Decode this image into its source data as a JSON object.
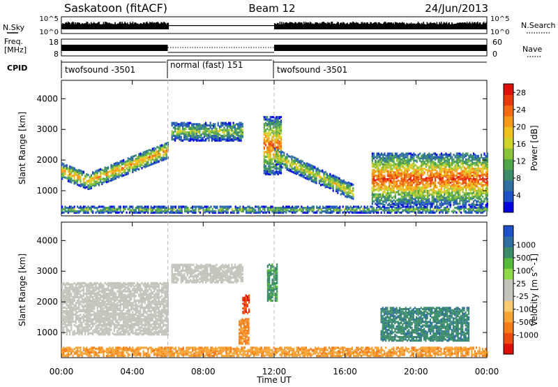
{
  "header": {
    "radar": "Saskatoon (fitACF)",
    "beam": "Beam 12",
    "date": "24/Jun/2013"
  },
  "noise_panel": {
    "left_label": "N.Sky",
    "right_label": "N.Search",
    "left_ticks": [
      "10^5",
      "10^0"
    ],
    "right_ticks": [
      "10^5",
      "10^0"
    ]
  },
  "freq_panel": {
    "left_label": "Freq.",
    "left_unit": "[MHz]",
    "left_ticks": [
      "18",
      "8"
    ],
    "right_label": "Nave",
    "right_ticks": [
      "60",
      "0"
    ]
  },
  "cpid": {
    "label": "CPID",
    "segments": [
      {
        "name": "twofsound -3501",
        "start_h": 0,
        "end_h": 6
      },
      {
        "name": "normal (fast) 151",
        "start_h": 6,
        "end_h": 12
      },
      {
        "name": "twofsound -3501",
        "start_h": 12,
        "end_h": 24
      }
    ]
  },
  "time_axis": {
    "label": "Time UT",
    "ticks": [
      "00:00",
      "04:00",
      "08:00",
      "12:00",
      "16:00",
      "20:00",
      "00:00"
    ],
    "tick_hours": [
      0,
      4,
      8,
      12,
      16,
      20,
      24
    ]
  },
  "chart_data": [
    {
      "type": "heatmap",
      "title": "",
      "quantity": "Power",
      "xlabel": "",
      "ylabel": "Slant Range [km]",
      "yticks": [
        "1000",
        "2000",
        "3000",
        "4000"
      ],
      "ytick_values": [
        1000,
        2000,
        3000,
        4000
      ],
      "ylim": [
        180,
        4600
      ],
      "xlim_hours": [
        0,
        24
      ],
      "colorbar": {
        "label": "Power [dB]",
        "ticks": [
          "4",
          "8",
          "12",
          "16",
          "20",
          "24",
          "28"
        ],
        "tick_values": [
          4,
          8,
          12,
          16,
          20,
          24,
          28
        ],
        "range": [
          0,
          30
        ],
        "colors": [
          "#0000e6",
          "#1e50c8",
          "#2f6fa0",
          "#3b8d6a",
          "#4fa547",
          "#8cc33c",
          "#cfd42c",
          "#f0c020",
          "#f59a18",
          "#f26a12",
          "#e83a0c",
          "#dd1008"
        ]
      },
      "features": [
        {
          "name": "E-region band",
          "start_h": 0,
          "end_h": 24,
          "range_km": [
            250,
            450
          ],
          "peak_db": 14
        },
        {
          "name": "Morning rising band",
          "start_h": 0,
          "end_h": 6,
          "range_km": [
            900,
            2400
          ],
          "peak_db": 22
        },
        {
          "name": "Far range band",
          "start_h": 6.2,
          "end_h": 10.2,
          "range_km": [
            2600,
            3200
          ],
          "peak_db": 14
        },
        {
          "name": "Near noon spike",
          "start_h": 11.4,
          "end_h": 12.4,
          "range_km": [
            1500,
            3400
          ],
          "peak_db": 24
        },
        {
          "name": "Afternoon descending band",
          "start_h": 12,
          "end_h": 16.5,
          "range_km": [
            900,
            2100
          ],
          "peak_db": 18
        },
        {
          "name": "Evening echoes",
          "start_h": 17.5,
          "end_h": 24,
          "range_km": [
            500,
            2200
          ],
          "peak_db": 26
        }
      ]
    },
    {
      "type": "heatmap",
      "title": "",
      "quantity": "Velocity",
      "xlabel": "Time UT",
      "ylabel": "Slant Range [km]",
      "yticks": [
        "1000",
        "2000",
        "3000",
        "4000"
      ],
      "ytick_values": [
        1000,
        2000,
        3000,
        4000
      ],
      "ylim": [
        180,
        4600
      ],
      "xlim_hours": [
        0,
        24
      ],
      "colorbar": {
        "label": "Velocity [m s^-1]",
        "ticks": [
          "1000",
          "500",
          "100",
          "25",
          "-25",
          "-100",
          "-500",
          "-1000"
        ],
        "tick_values": [
          1000,
          500,
          100,
          25,
          -25,
          -100,
          -500,
          -1000
        ],
        "range": [
          -1000,
          1000
        ],
        "colors": [
          "#dd1008",
          "#ec4c10",
          "#f47c18",
          "#f6a436",
          "#f9cc72",
          "#c4c4bc",
          "#c4c4bc",
          "#8fd84a",
          "#55bb3a",
          "#3b8d6a",
          "#2f6fa0",
          "#1e50c8"
        ]
      },
      "ground_scatter_color": "#c4c4bc",
      "features": [
        {
          "name": "Ground scatter band (morning)",
          "start_h": 0,
          "end_h": 6,
          "range_km": [
            900,
            2600
          ],
          "velocity_ms": 0
        },
        {
          "name": "Ground scatter far range",
          "start_h": 6.2,
          "end_h": 10.2,
          "range_km": [
            2600,
            3200
          ],
          "velocity_ms": 0
        },
        {
          "name": "Red receding patch",
          "start_h": 10.2,
          "end_h": 10.6,
          "range_km": [
            1600,
            2200
          ],
          "velocity_ms": -900
        },
        {
          "name": "Orange patch",
          "start_h": 10.0,
          "end_h": 10.6,
          "range_km": [
            600,
            1400
          ],
          "velocity_ms": -300
        },
        {
          "name": "Green noon spike",
          "start_h": 11.6,
          "end_h": 12.2,
          "range_km": [
            2000,
            3200
          ],
          "velocity_ms": 150
        },
        {
          "name": "Evening approaching echoes",
          "start_h": 18,
          "end_h": 23,
          "range_km": [
            700,
            1800
          ],
          "velocity_ms": 200
        },
        {
          "name": "Near range orange band",
          "start_h": 0,
          "end_h": 24,
          "range_km": [
            200,
            500
          ],
          "velocity_ms": -200
        }
      ]
    }
  ]
}
